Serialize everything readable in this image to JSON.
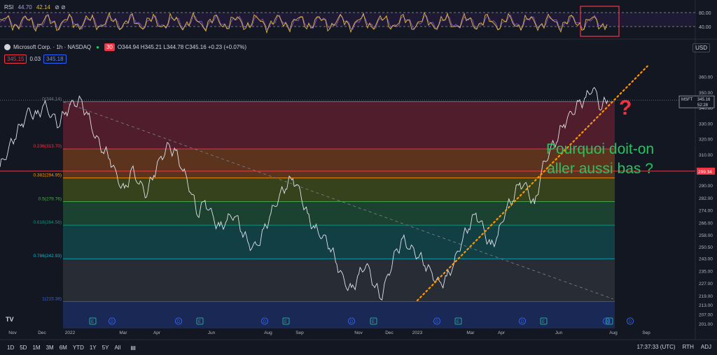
{
  "rsi": {
    "label": "RSI",
    "v1": "44.70",
    "v2": "42.14",
    "extra": "⊘ ⊘",
    "ticks": [
      "80.00",
      "40.00"
    ],
    "colors": {
      "line": "#e2b93b",
      "line2": "#7e57c2"
    }
  },
  "header": {
    "symbol": "Microsoft Corp. · 1h · NASDAQ",
    "badge1": "●",
    "badge2": "30",
    "ohlc": "O344.94  H345.21  L344.78  C345.16  +0.23 (+0.07%)",
    "bid": "345.15",
    "spread": "0.03",
    "ask": "345.18",
    "currency": "USD"
  },
  "annotation": {
    "question": "?",
    "text_line1": "Pourquoi doit-on",
    "text_line2": "aller aussi bas ?"
  },
  "chart_data": {
    "type": "line",
    "instrument": "MSFT",
    "x_labels": [
      "Nov",
      "Dec",
      "2022",
      "Mar",
      "Apr",
      "Jun",
      "Aug",
      "Sep",
      "Nov",
      "Dec",
      "2023",
      "Mar",
      "Apr",
      "Jun",
      "Aug",
      "Sep"
    ],
    "y_ticks": [
      360.0,
      350.0,
      340.0,
      330.0,
      320.0,
      310.0,
      299.34,
      290.0,
      282.0,
      274.0,
      266.0,
      258.0,
      250.5,
      243.0,
      235.0,
      227.0,
      219.0,
      213.0,
      207.0,
      201.0
    ],
    "ylim": [
      198,
      370
    ],
    "current_price": {
      "symbol": "MSFT",
      "price": "345.16",
      "countdown": "52:28"
    },
    "horizontal_marker": {
      "price": "299.34",
      "color": "#f23645"
    },
    "fib_levels": [
      {
        "label": "0(344.14)",
        "value": 344.14,
        "color": "#787b86",
        "fill": "#5a1f2e"
      },
      {
        "label": "0.236(313.70)",
        "value": 313.7,
        "color": "#f23645",
        "fill": "#6a3a1c"
      },
      {
        "label": "0.382(294.95)",
        "value": 294.95,
        "color": "#ff9800",
        "fill": "#3c4a1a"
      },
      {
        "label": "0.5(279.76)",
        "value": 279.76,
        "color": "#4caf50",
        "fill": "#1d4a34"
      },
      {
        "label": "0.618(264.56)",
        "value": 264.56,
        "color": "#089981",
        "fill": "#134649"
      },
      {
        "label": "0.786(242.93)",
        "value": 242.93,
        "color": "#00bcd4",
        "fill": "#2c3038"
      },
      {
        "label": "1(215.38)",
        "value": 215.38,
        "color": "#2962ff",
        "fill": "#1b2c5e"
      }
    ],
    "series": [
      {
        "values": [
          302,
          312,
          322,
          330,
          338,
          334,
          342,
          336,
          330,
          338,
          343,
          344,
          335,
          322,
          314,
          308,
          295,
          286,
          300,
          292,
          285,
          298,
          308,
          315,
          311,
          300,
          288,
          272,
          280,
          270,
          262,
          268,
          272,
          262,
          252,
          250,
          260,
          272,
          282,
          290,
          295,
          285,
          270,
          262,
          258,
          252,
          240,
          228,
          222,
          232,
          240,
          228,
          218,
          232,
          246,
          255,
          250,
          246,
          240,
          233,
          226,
          230,
          240,
          254,
          264,
          272,
          262,
          250,
          258,
          274,
          282,
          292,
          288,
          276,
          300,
          312,
          320,
          330,
          336,
          342,
          346,
          354,
          341,
          345
        ]
      }
    ],
    "trendline_up": {
      "from": [
        0.582,
        216
      ],
      "to": [
        0.903,
        367
      ],
      "color": "#ff9800"
    },
    "trendline_down": {
      "from": [
        0.088,
        344
      ],
      "to": [
        0.855,
        217
      ],
      "color": "#787b86"
    },
    "events": [
      "E",
      "D",
      "D",
      "E",
      "D",
      "E",
      "D",
      "E",
      "D",
      "E",
      "D",
      "E",
      "D",
      "E",
      "D"
    ]
  },
  "toolbar": {
    "timeframes": [
      "1D",
      "5D",
      "1M",
      "3M",
      "6M",
      "YTD",
      "1Y",
      "5Y",
      "All"
    ],
    "time": "17:37:33 (UTC)",
    "rth": "RTH",
    "adj": "ADJ",
    "logo": "TV"
  }
}
